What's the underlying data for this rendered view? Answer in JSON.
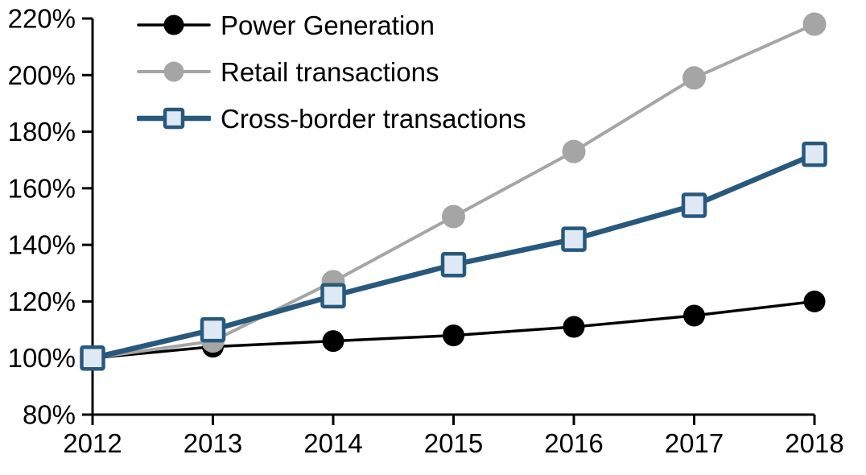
{
  "chart_data": {
    "type": "line",
    "title": "",
    "xlabel": "",
    "ylabel": "",
    "x": [
      "2012",
      "2013",
      "2014",
      "2015",
      "2016",
      "2017",
      "2018"
    ],
    "series": [
      {
        "name": "Power Generation",
        "values": [
          100,
          104,
          106,
          108,
          111,
          115,
          120
        ],
        "color": "#000000",
        "marker": "circle",
        "marker_fill": "#000000",
        "line_width": 3.5,
        "marker_size": 27
      },
      {
        "name": "Retail transactions",
        "values": [
          100,
          106,
          127,
          150,
          173,
          199,
          218
        ],
        "color": "#A5A5A5",
        "marker": "circle",
        "marker_fill": "#A5A5A5",
        "line_width": 4,
        "marker_size": 29
      },
      {
        "name": "Cross-border transactions",
        "values": [
          100,
          110,
          122,
          133,
          142,
          154,
          172
        ],
        "color": "#28597D",
        "marker": "square",
        "marker_fill": "#DEE9F5",
        "line_width": 6.5,
        "marker_size": 27
      }
    ],
    "ylim": [
      80,
      220
    ],
    "ytick_step": 20,
    "ytick_suffix": "%",
    "ytick_labels": [
      "80%",
      "100%",
      "120%",
      "140%",
      "160%",
      "180%",
      "200%",
      "220%"
    ],
    "grid": false,
    "legend_position": "top-left",
    "axis_color": "#000000",
    "background_color": "#FFFFFF"
  }
}
